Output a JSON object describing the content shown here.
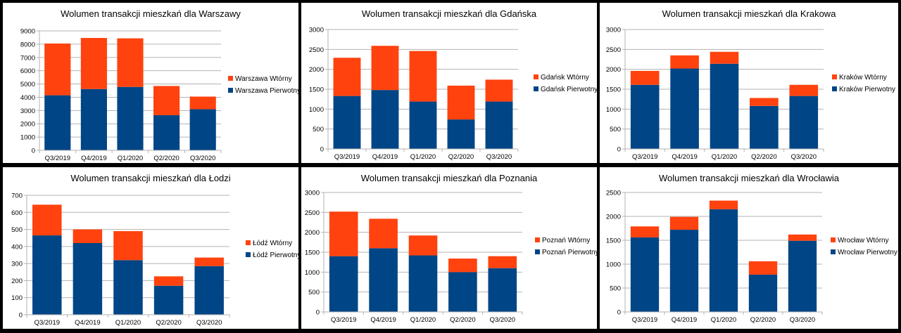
{
  "colors": {
    "primary": "#004586",
    "secondary": "#ff420e",
    "grid": "#b3b3b3",
    "axis": "#b3b3b3",
    "background": "#000000",
    "panel": "#ffffff"
  },
  "chart_data": [
    {
      "type": "bar",
      "stacked": true,
      "title": "Wolumen transakcji mieszkań dla Warszawy",
      "categories": [
        "Q3/2019",
        "Q4/2019",
        "Q1/2020",
        "Q2/2020",
        "Q3/2020"
      ],
      "ylim": [
        0,
        9000
      ],
      "yticks": [
        0,
        1000,
        2000,
        3000,
        4000,
        5000,
        6000,
        7000,
        8000,
        9000
      ],
      "grid": true,
      "legend": "right",
      "series": [
        {
          "name": "Warszawa Pierwotny",
          "color": "#004586",
          "values": [
            4150,
            4620,
            4780,
            2650,
            3100
          ]
        },
        {
          "name": "Warszawa Wtórny",
          "color": "#ff420e",
          "values": [
            3900,
            3850,
            3660,
            2200,
            950
          ]
        }
      ]
    },
    {
      "type": "bar",
      "stacked": true,
      "title": "Wolumen transakcji mieszkań dla Gdańska",
      "categories": [
        "Q3/2019",
        "Q4/2019",
        "Q1/2020",
        "Q2/2020",
        "Q3/2020"
      ],
      "ylim": [
        0,
        3000
      ],
      "yticks": [
        0,
        500,
        1000,
        1500,
        2000,
        2500,
        3000
      ],
      "grid": true,
      "legend": "right",
      "series": [
        {
          "name": "Gdańsk Pierwotny",
          "color": "#004586",
          "values": [
            1330,
            1480,
            1190,
            740,
            1190
          ]
        },
        {
          "name": "Gdańsk Wtórny",
          "color": "#ff420e",
          "values": [
            960,
            1110,
            1270,
            850,
            550
          ]
        }
      ]
    },
    {
      "type": "bar",
      "stacked": true,
      "title": "Wolumen transakcji mieszkań dla Krakowa",
      "categories": [
        "Q3/2019",
        "Q4/2019",
        "Q1/2020",
        "Q2/2020",
        "Q3/2020"
      ],
      "ylim": [
        0,
        3000
      ],
      "yticks": [
        0,
        500,
        1000,
        1500,
        2000,
        2500,
        3000
      ],
      "grid": true,
      "legend": "right",
      "series": [
        {
          "name": "Kraków Pierwotny",
          "color": "#004586",
          "values": [
            1610,
            2020,
            2140,
            1080,
            1330
          ]
        },
        {
          "name": "Kraków Wtórny",
          "color": "#ff420e",
          "values": [
            350,
            330,
            300,
            200,
            280
          ]
        }
      ]
    },
    {
      "type": "bar",
      "stacked": true,
      "title": "Wolumen transakcji mieszkań dla Łodzi",
      "categories": [
        "Q3/2019",
        "Q4/2019",
        "Q1/2020",
        "Q2/2020",
        "Q3/2020"
      ],
      "ylim": [
        0,
        700
      ],
      "yticks": [
        0,
        100,
        200,
        300,
        400,
        500,
        600,
        700
      ],
      "grid": true,
      "legend": "right",
      "series": [
        {
          "name": "Łódź Pierwotny",
          "color": "#004586",
          "values": [
            465,
            420,
            320,
            170,
            285
          ]
        },
        {
          "name": "Łódź Wtórny",
          "color": "#ff420e",
          "values": [
            180,
            80,
            170,
            55,
            50
          ]
        }
      ]
    },
    {
      "type": "bar",
      "stacked": true,
      "title": "Wolumen transakcji mieszkań dla Poznania",
      "categories": [
        "Q3/2019",
        "Q4/2019",
        "Q1/2020",
        "Q2/2020",
        "Q3/2020"
      ],
      "ylim": [
        0,
        3000
      ],
      "yticks": [
        0,
        500,
        1000,
        1500,
        2000,
        2500,
        3000
      ],
      "grid": true,
      "legend": "right",
      "series": [
        {
          "name": "Poznań Pierwotny",
          "color": "#004586",
          "values": [
            1400,
            1600,
            1420,
            1000,
            1100
          ]
        },
        {
          "name": "Poznań Wtórny",
          "color": "#ff420e",
          "values": [
            1120,
            740,
            500,
            340,
            300
          ]
        }
      ]
    },
    {
      "type": "bar",
      "stacked": true,
      "title": "Wolumen transakcji mieszkań dla Wrocławia",
      "categories": [
        "Q3/2019",
        "Q4/2019",
        "Q1/2020",
        "Q2/2020",
        "Q3/2020"
      ],
      "ylim": [
        0,
        2500
      ],
      "yticks": [
        0,
        500,
        1000,
        1500,
        2000,
        2500
      ],
      "grid": true,
      "legend": "right",
      "series": [
        {
          "name": "Wrocław Pierwotny",
          "color": "#004586",
          "values": [
            1560,
            1720,
            2150,
            780,
            1490
          ]
        },
        {
          "name": "Wrocław Wtórny",
          "color": "#ff420e",
          "values": [
            230,
            270,
            180,
            280,
            130
          ]
        }
      ]
    }
  ]
}
